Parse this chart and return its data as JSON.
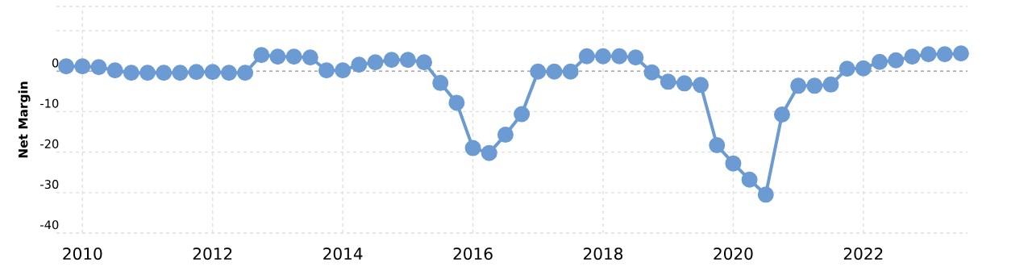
{
  "chart_data": {
    "type": "line",
    "ylabel": "Net Margin",
    "x": [
      2009.75,
      2010,
      2010.25,
      2010.5,
      2010.75,
      2011,
      2011.25,
      2011.5,
      2011.75,
      2012,
      2012.25,
      2012.5,
      2012.75,
      2013,
      2013.25,
      2013.5,
      2013.75,
      2014,
      2014.25,
      2014.5,
      2014.75,
      2015,
      2015.25,
      2015.5,
      2015.75,
      2016,
      2016.25,
      2016.5,
      2016.75,
      2017,
      2017.25,
      2017.5,
      2017.75,
      2018,
      2018.25,
      2018.5,
      2018.75,
      2019,
      2019.25,
      2019.5,
      2019.75,
      2020,
      2020.25,
      2020.5,
      2020.75,
      2021,
      2021.25,
      2021.5,
      2021.75,
      2022,
      2022.25,
      2022.5,
      2022.75,
      2023,
      2023.25,
      2023.5
    ],
    "series": [
      {
        "color": "#6b9bd2",
        "values": [
          1.2,
          1.2,
          1.0,
          0.2,
          -0.4,
          -0.4,
          -0.4,
          -0.4,
          -0.2,
          -0.2,
          -0.4,
          -0.4,
          4.0,
          3.6,
          3.6,
          3.4,
          0.2,
          0.2,
          1.6,
          2.2,
          2.8,
          2.8,
          2.2,
          -2.9,
          -7.8,
          -19.0,
          -20.2,
          -15.7,
          -10.6,
          -0.1,
          -0.1,
          -0.1,
          3.7,
          3.7,
          3.7,
          3.4,
          -0.3,
          -2.6,
          -3.0,
          -3.4,
          -18.3,
          -22.8,
          -26.8,
          -30.5,
          -10.7,
          -3.6,
          -3.6,
          -3.3,
          0.6,
          0.7,
          2.3,
          2.7,
          3.6,
          4.2,
          4.2,
          4.4
        ]
      }
    ],
    "xlim": [
      2009.6,
      2023.6
    ],
    "xticks": [
      2010,
      2012,
      2014,
      2016,
      2018,
      2020,
      2022
    ],
    "ylim": [
      -40,
      16
    ],
    "yticks": [
      -40,
      -30,
      -20,
      -10,
      0,
      {
        "value": 10,
        "label": null
      },
      {
        "value": 16,
        "label": null
      }
    ],
    "ref_lines": [
      {
        "axis": "y",
        "value": 0,
        "color": "#aaaaaa",
        "line_style": "dashed"
      }
    ],
    "grid": true,
    "marker": "circle",
    "line_style": "solid"
  }
}
